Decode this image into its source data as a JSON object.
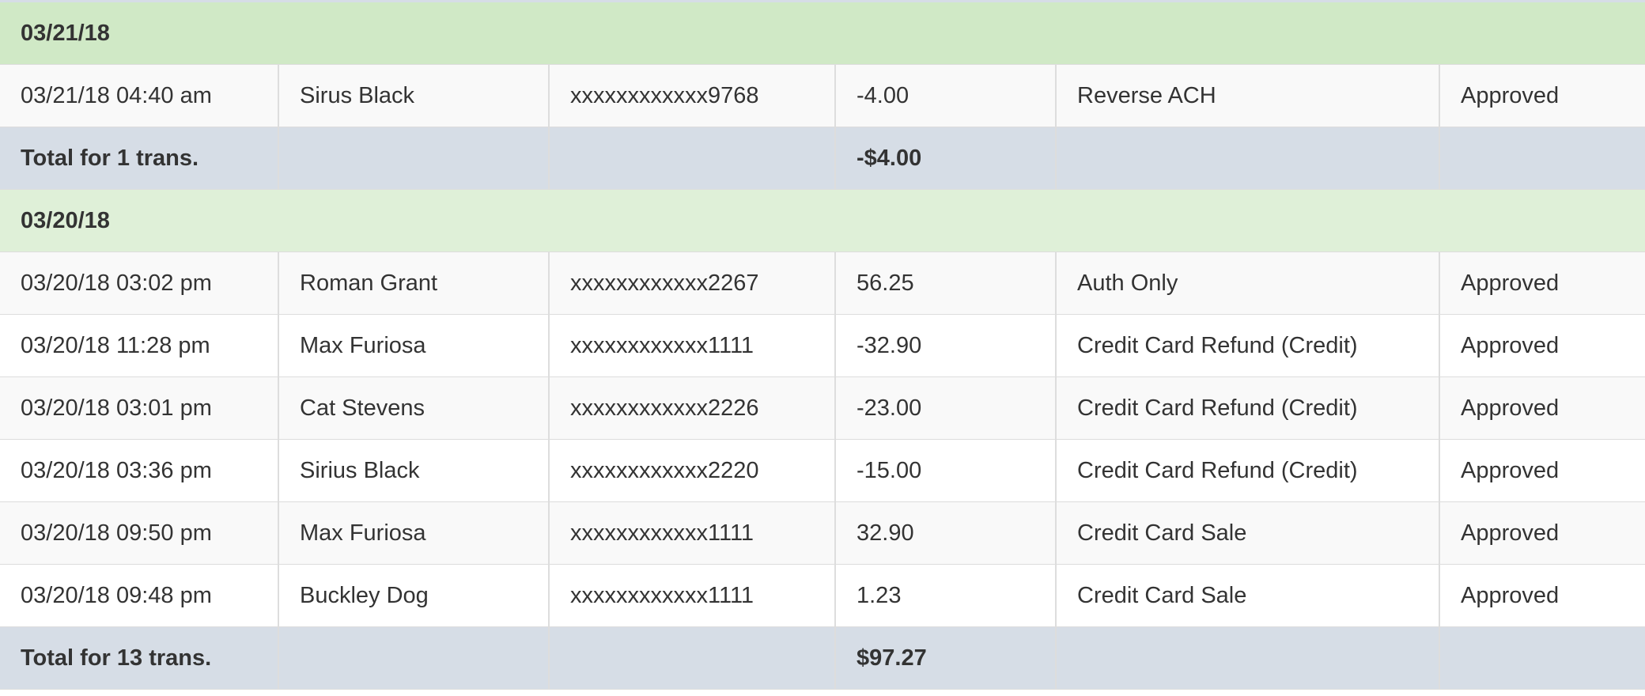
{
  "groups": [
    {
      "date": "03/21/18",
      "rows": [
        {
          "datetime": "03/21/18 04:40 am",
          "name": "Sirus Black",
          "card": "xxxxxxxxxxxx9768",
          "amount": "-4.00",
          "type": "Reverse ACH",
          "status": "Approved"
        }
      ],
      "total_label": "Total for 1 trans.",
      "total_amount": "-$4.00"
    },
    {
      "date": "03/20/18",
      "rows": [
        {
          "datetime": "03/20/18 03:02 pm",
          "name": "Roman Grant",
          "card": "xxxxxxxxxxxx2267",
          "amount": "56.25",
          "type": "Auth Only",
          "status": "Approved"
        },
        {
          "datetime": "03/20/18 11:28 pm",
          "name": "Max Furiosa",
          "card": "xxxxxxxxxxxx1111",
          "amount": "-32.90",
          "type": "Credit Card Refund (Credit)",
          "status": "Approved"
        },
        {
          "datetime": "03/20/18 03:01 pm",
          "name": "Cat Stevens",
          "card": "xxxxxxxxxxxx2226",
          "amount": "-23.00",
          "type": "Credit Card Refund (Credit)",
          "status": "Approved"
        },
        {
          "datetime": "03/20/18 03:36 pm",
          "name": "Sirius Black",
          "card": "xxxxxxxxxxxx2220",
          "amount": "-15.00",
          "type": "Credit Card Refund (Credit)",
          "status": "Approved"
        },
        {
          "datetime": "03/20/18 09:50 pm",
          "name": "Max Furiosa",
          "card": "xxxxxxxxxxxx1111",
          "amount": "32.90",
          "type": "Credit Card Sale",
          "status": "Approved"
        },
        {
          "datetime": "03/20/18 09:48 pm",
          "name": "Buckley Dog",
          "card": "xxxxxxxxxxxx1111",
          "amount": "1.23",
          "type": "Credit Card Sale",
          "status": "Approved"
        }
      ],
      "total_label": "Total for 13 trans.",
      "total_amount": "$97.27"
    }
  ],
  "colors": {
    "group_header": "#d0e9c6",
    "group_header_alt": "#dff0d8",
    "total_row": "#d6dde6",
    "striped_row": "#f9f9f9"
  }
}
